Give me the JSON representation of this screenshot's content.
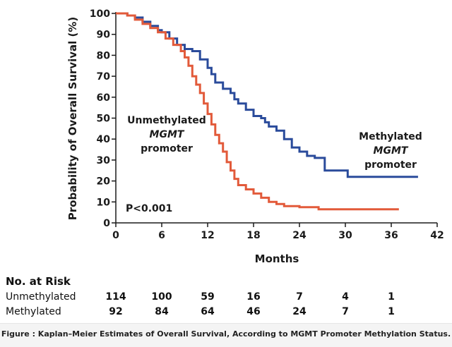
{
  "chart_data": {
    "type": "line",
    "title": "",
    "xlabel": "Months",
    "ylabel": "Probability of Overall Survival (%)",
    "xlim": [
      0,
      42
    ],
    "ylim": [
      0,
      100
    ],
    "x_ticks": [
      0,
      6,
      12,
      18,
      24,
      30,
      36,
      42
    ],
    "y_ticks": [
      0,
      10,
      20,
      30,
      40,
      50,
      60,
      70,
      80,
      90,
      100
    ],
    "grid": false,
    "series": [
      {
        "name": "Methylated MGMT promoter",
        "color": "#2a4b9b",
        "step": true,
        "points": [
          [
            0,
            100
          ],
          [
            1,
            100
          ],
          [
            1.5,
            99
          ],
          [
            2.5,
            98
          ],
          [
            3.5,
            96
          ],
          [
            4.5,
            94
          ],
          [
            5.5,
            92
          ],
          [
            6,
            91
          ],
          [
            7,
            88
          ],
          [
            8,
            85
          ],
          [
            9,
            83
          ],
          [
            10,
            82
          ],
          [
            11,
            78
          ],
          [
            12,
            74
          ],
          [
            12.5,
            71
          ],
          [
            13,
            67
          ],
          [
            14,
            64
          ],
          [
            15,
            62
          ],
          [
            15.5,
            59
          ],
          [
            16,
            57
          ],
          [
            17,
            54
          ],
          [
            18,
            51
          ],
          [
            19,
            50
          ],
          [
            19.5,
            48
          ],
          [
            20,
            46
          ],
          [
            21,
            44
          ],
          [
            22,
            40
          ],
          [
            23,
            36
          ],
          [
            24,
            34
          ],
          [
            25,
            32
          ],
          [
            26,
            31
          ],
          [
            27,
            31
          ],
          [
            27.3,
            25
          ],
          [
            30,
            25
          ],
          [
            30.3,
            22
          ],
          [
            39.5,
            22
          ]
        ]
      },
      {
        "name": "Unmethylated MGMT promoter",
        "color": "#e25a3a",
        "step": true,
        "points": [
          [
            0,
            100
          ],
          [
            1.5,
            99
          ],
          [
            2.5,
            97
          ],
          [
            3.5,
            95
          ],
          [
            4.5,
            93
          ],
          [
            5.5,
            91
          ],
          [
            6.5,
            88
          ],
          [
            7.5,
            85
          ],
          [
            8.5,
            82
          ],
          [
            9,
            79
          ],
          [
            9.5,
            75
          ],
          [
            10,
            70
          ],
          [
            10.5,
            66
          ],
          [
            11,
            62
          ],
          [
            11.5,
            57
          ],
          [
            12,
            52
          ],
          [
            12.5,
            47
          ],
          [
            13,
            42
          ],
          [
            13.5,
            38
          ],
          [
            14,
            34
          ],
          [
            14.5,
            29
          ],
          [
            15,
            25
          ],
          [
            15.5,
            21
          ],
          [
            16,
            18
          ],
          [
            17,
            16
          ],
          [
            18,
            14
          ],
          [
            19,
            12
          ],
          [
            20,
            10
          ],
          [
            21,
            9
          ],
          [
            22,
            8
          ],
          [
            24,
            7.5
          ],
          [
            26,
            7.5
          ],
          [
            26.5,
            6.5
          ],
          [
            37,
            6.5
          ]
        ]
      }
    ],
    "annotations": {
      "unmethylated": [
        "Unmethylated",
        "MGMT",
        "promoter"
      ],
      "methylated": [
        "Methylated",
        "MGMT",
        "promoter"
      ],
      "p_value": "P<0.001"
    }
  },
  "risk_table": {
    "title": "No. at Risk",
    "times": [
      0,
      6,
      12,
      18,
      24,
      30,
      36
    ],
    "rows": [
      {
        "label": "Unmethylated",
        "values": [
          "114",
          "100",
          "59",
          "16",
          "7",
          "4",
          "1"
        ]
      },
      {
        "label": "Methylated",
        "values": [
          "92",
          "84",
          "64",
          "46",
          "24",
          "7",
          "1"
        ]
      }
    ]
  },
  "caption": "Figure : Kaplan–Meier Estimates of Overall Survival, According to MGMT Promoter Methylation Status."
}
